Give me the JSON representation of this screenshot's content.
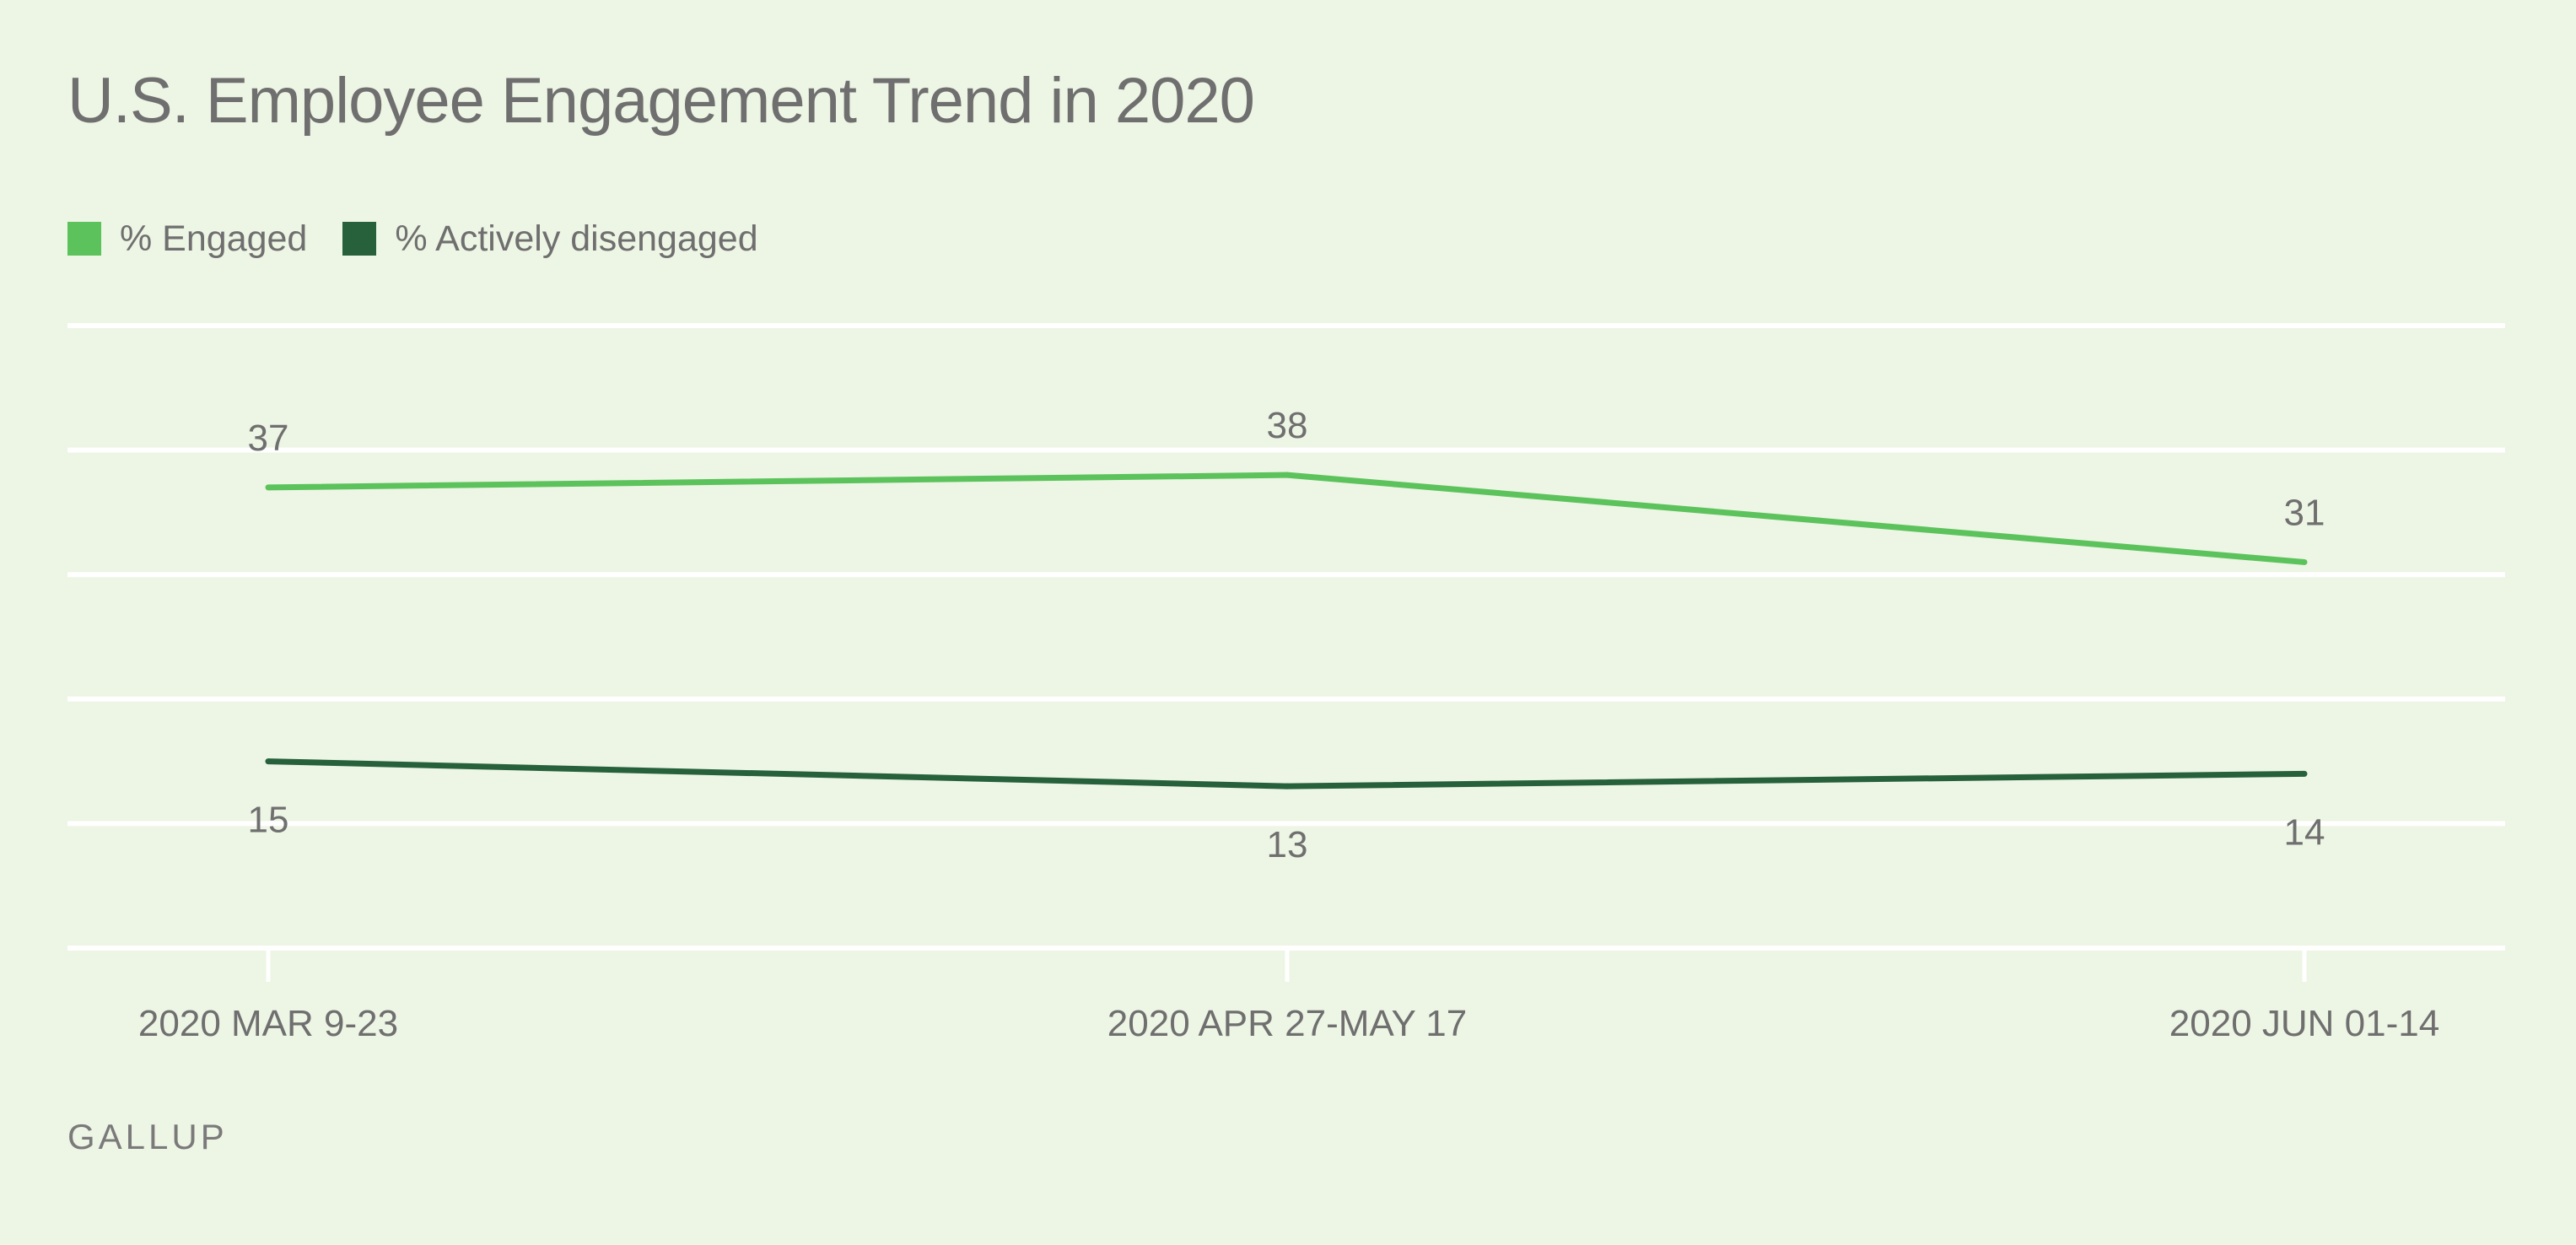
{
  "title": "U.S. Employee Engagement Trend in 2020",
  "source": "GALLUP",
  "colors": {
    "background": "#edf5e4",
    "engaged": "#5cc35c",
    "disengaged": "#27613c",
    "grid": "#ffffff",
    "text": "#6f6f6f"
  },
  "chart_data": {
    "type": "line",
    "categories": [
      "2020 MAR 9-23",
      "2020 APR 27-MAY 17",
      "2020 JUN 01-14"
    ],
    "series": [
      {
        "name": "% Engaged",
        "values": [
          37,
          38,
          31
        ],
        "color": "#5cc35c",
        "label_position": "above"
      },
      {
        "name": "% Actively disengaged",
        "values": [
          15,
          13,
          14
        ],
        "color": "#27613c",
        "label_position": "below"
      }
    ],
    "ylim": [
      0,
      50
    ],
    "grid": true,
    "legend": "top-left",
    "data_labels": true
  }
}
